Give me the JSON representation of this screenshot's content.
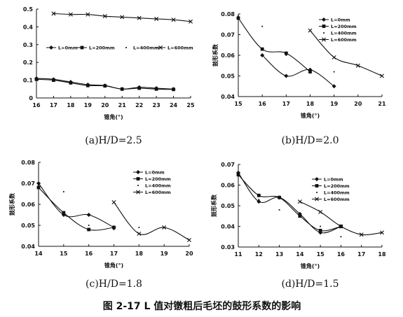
{
  "figure_caption": "图 2-17 L 值对镦粗后毛坯的鼓形系数的影响",
  "series_names": [
    "L=0mm",
    "L=200mm",
    "L=400mm",
    "L=600mm"
  ],
  "chart_data": [
    {
      "id": "a",
      "type": "line",
      "caption": "(a)H/D=2.5",
      "xlabel": "锥角(°)",
      "ylabel": "",
      "xlim": [
        16,
        25
      ],
      "ylim": [
        0,
        0.5
      ],
      "xticks": [
        "16",
        "17",
        "18",
        "19",
        "20",
        "21",
        "22",
        "23",
        "24",
        "25"
      ],
      "yticks": [
        "0",
        "0.1",
        "0.2",
        "0.3",
        "0.4",
        "0.5"
      ],
      "legend": "middle",
      "series": [
        {
          "name": "L=0mm",
          "x": [
            16,
            17,
            18,
            19,
            20,
            21,
            22,
            23,
            24
          ],
          "y": [
            0.11,
            0.105,
            0.09,
            0.075,
            0.07,
            0.05,
            0.06,
            0.055,
            0.05
          ]
        },
        {
          "name": "L=200mm",
          "x": [
            16,
            17,
            18,
            19,
            20,
            21,
            22,
            23,
            24
          ],
          "y": [
            0.105,
            0.1,
            0.085,
            0.07,
            0.068,
            0.05,
            0.055,
            0.05,
            0.048
          ]
        },
        {
          "name": "L=400mm",
          "x": [
            16,
            17,
            18,
            19,
            20,
            21,
            22,
            23,
            24
          ],
          "y": [
            0.105,
            0.1,
            0.085,
            0.072,
            0.07,
            0.055,
            0.06,
            0.05,
            0.05
          ]
        },
        {
          "name": "L=600mm",
          "x": [
            17,
            18,
            19,
            20,
            21,
            22,
            23,
            24,
            25
          ],
          "y": [
            0.475,
            0.47,
            0.47,
            0.46,
            0.455,
            0.45,
            0.445,
            0.44,
            0.43
          ]
        }
      ]
    },
    {
      "id": "b",
      "type": "line",
      "caption": "(b)H/D=2.0",
      "xlabel": "锥角(°)",
      "ylabel": "鼓形系数",
      "xlim": [
        15,
        21
      ],
      "ylim": [
        0.04,
        0.08
      ],
      "xticks": [
        "15",
        "16",
        "17",
        "18",
        "19",
        "20",
        "21"
      ],
      "yticks": [
        "0.04",
        "0.05",
        "0.06",
        "0.07",
        "0.08"
      ],
      "legend": "top-right",
      "series": [
        {
          "name": "L=0mm",
          "x": [
            16,
            17,
            18,
            19
          ],
          "y": [
            0.06,
            0.05,
            0.053,
            0.045
          ]
        },
        {
          "name": "L=200mm",
          "x": [
            15,
            16,
            17,
            18
          ],
          "y": [
            0.078,
            0.063,
            0.061,
            0.052
          ]
        },
        {
          "name": "L=400mm",
          "x": [
            15,
            16,
            17,
            18,
            19
          ],
          "y": [
            0.079,
            0.074,
            0.06,
            0.053,
            0.052
          ]
        },
        {
          "name": "L=600mm",
          "x": [
            18,
            19,
            20,
            21
          ],
          "y": [
            0.072,
            0.059,
            0.055,
            0.05
          ]
        }
      ]
    },
    {
      "id": "c",
      "type": "line",
      "caption": "(c)H/D=1.8",
      "xlabel": "锥角(°)",
      "ylabel": "鼓形系数",
      "xlim": [
        14,
        20
      ],
      "ylim": [
        0.04,
        0.08
      ],
      "xticks": [
        "14",
        "15",
        "16",
        "17",
        "18",
        "19",
        "20"
      ],
      "yticks": [
        "0.04",
        "0.05",
        "0.06",
        "0.07",
        "0.08"
      ],
      "legend": "top-right",
      "series": [
        {
          "name": "L=0mm",
          "x": [
            14,
            15,
            16,
            17
          ],
          "y": [
            0.07,
            0.055,
            0.055,
            0.049
          ]
        },
        {
          "name": "L=200mm",
          "x": [
            14,
            15,
            16,
            17
          ],
          "y": [
            0.068,
            0.056,
            0.048,
            0.049
          ]
        },
        {
          "name": "L=400mm",
          "x": [
            14,
            15,
            16,
            17,
            18
          ],
          "y": [
            0.069,
            0.066,
            0.05,
            0.048,
            0.049
          ]
        },
        {
          "name": "L=600mm",
          "x": [
            17,
            18,
            19,
            20
          ],
          "y": [
            0.061,
            0.046,
            0.049,
            0.043
          ]
        }
      ]
    },
    {
      "id": "d",
      "type": "line",
      "caption": "(d)H/D=1.5",
      "xlabel": "锥角(°)",
      "ylabel": "鼓形系数",
      "xlim": [
        11,
        18
      ],
      "ylim": [
        0.03,
        0.07
      ],
      "xticks": [
        "11",
        "12",
        "13",
        "14",
        "15",
        "16",
        "17",
        "18"
      ],
      "yticks": [
        "0.03",
        "0.04",
        "0.05",
        "0.06",
        "0.07"
      ],
      "legend": "top-right",
      "series": [
        {
          "name": "L=0mm",
          "x": [
            11,
            12,
            13,
            14,
            15,
            16
          ],
          "y": [
            0.066,
            0.052,
            0.054,
            0.046,
            0.037,
            0.04
          ]
        },
        {
          "name": "L=200mm",
          "x": [
            11,
            12,
            13,
            14,
            15,
            16
          ],
          "y": [
            0.065,
            0.055,
            0.054,
            0.045,
            0.038,
            0.04
          ]
        },
        {
          "name": "L=400mm",
          "x": [
            11,
            12,
            13,
            14,
            15,
            16
          ],
          "y": [
            0.065,
            0.053,
            0.048,
            0.045,
            0.04,
            0.035
          ]
        },
        {
          "name": "L=600mm",
          "x": [
            14,
            15,
            16,
            17,
            18
          ],
          "y": [
            0.052,
            0.047,
            0.04,
            0.036,
            0.037
          ]
        }
      ]
    }
  ]
}
